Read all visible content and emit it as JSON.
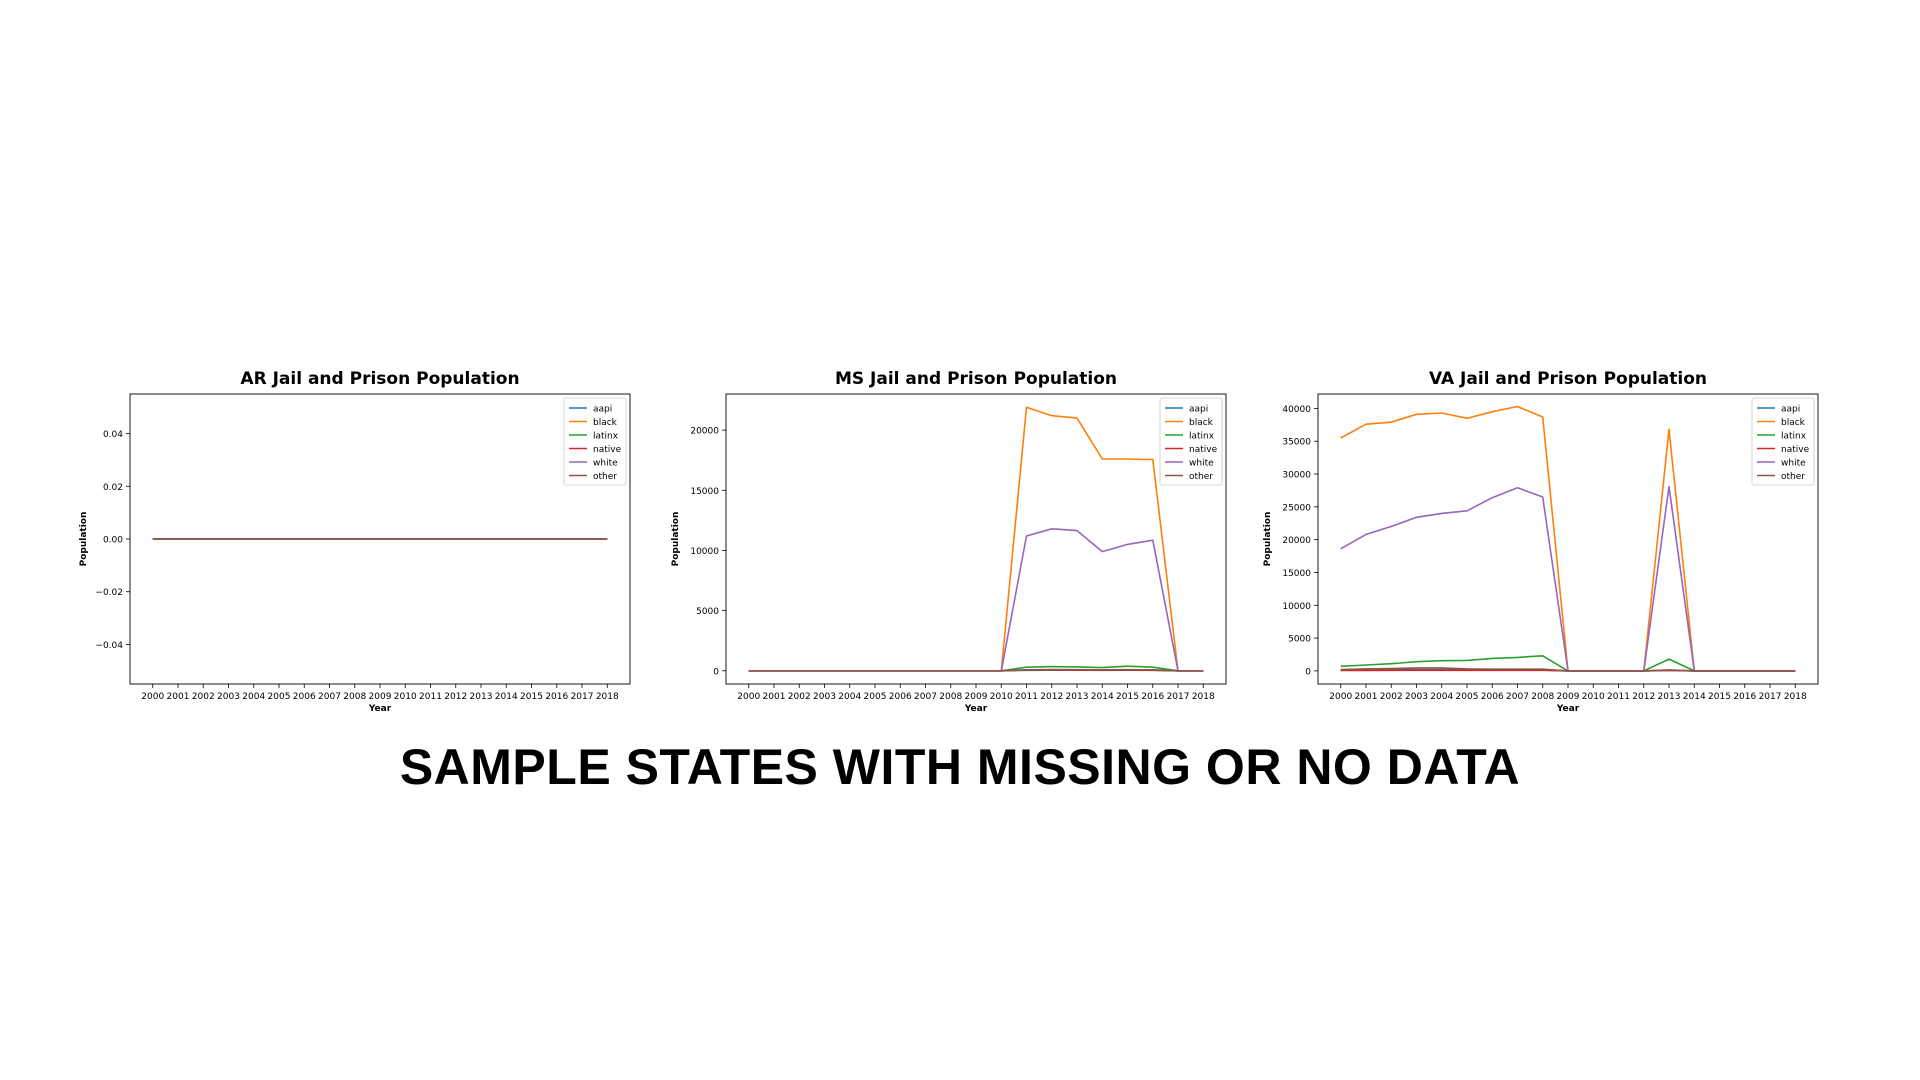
{
  "headline": "SAMPLE STATES WITH MISSING OR NO DATA",
  "series_colors": {
    "aapi": "#1f77b4",
    "black": "#ff7f0e",
    "latinx": "#2ca02c",
    "native": "#d62728",
    "white": "#9467bd",
    "other": "#8c564b"
  },
  "chart_data": [
    {
      "type": "line",
      "title": "AR Jail and Prison Population",
      "xlabel": "Year",
      "ylabel": "Population",
      "x": [
        2000,
        2001,
        2002,
        2003,
        2004,
        2005,
        2006,
        2007,
        2008,
        2009,
        2010,
        2011,
        2012,
        2013,
        2014,
        2015,
        2016,
        2017,
        2018
      ],
      "ylim": [
        -0.055,
        0.055
      ],
      "yticks": [
        -0.04,
        -0.02,
        0.0,
        0.02,
        0.04
      ],
      "ytick_labels": [
        "−0.04",
        "−0.02",
        "0.00",
        "0.02",
        "0.04"
      ],
      "legend_position": "upper right",
      "grid": false,
      "series": [
        {
          "name": "aapi",
          "values": [
            0,
            0,
            0,
            0,
            0,
            0,
            0,
            0,
            0,
            0,
            0,
            0,
            0,
            0,
            0,
            0,
            0,
            0,
            0
          ]
        },
        {
          "name": "black",
          "values": [
            0,
            0,
            0,
            0,
            0,
            0,
            0,
            0,
            0,
            0,
            0,
            0,
            0,
            0,
            0,
            0,
            0,
            0,
            0
          ]
        },
        {
          "name": "latinx",
          "values": [
            0,
            0,
            0,
            0,
            0,
            0,
            0,
            0,
            0,
            0,
            0,
            0,
            0,
            0,
            0,
            0,
            0,
            0,
            0
          ]
        },
        {
          "name": "native",
          "values": [
            0,
            0,
            0,
            0,
            0,
            0,
            0,
            0,
            0,
            0,
            0,
            0,
            0,
            0,
            0,
            0,
            0,
            0,
            0
          ]
        },
        {
          "name": "white",
          "values": [
            0,
            0,
            0,
            0,
            0,
            0,
            0,
            0,
            0,
            0,
            0,
            0,
            0,
            0,
            0,
            0,
            0,
            0,
            0
          ]
        },
        {
          "name": "other",
          "values": [
            0,
            0,
            0,
            0,
            0,
            0,
            0,
            0,
            0,
            0,
            0,
            0,
            0,
            0,
            0,
            0,
            0,
            0,
            0
          ]
        }
      ]
    },
    {
      "type": "line",
      "title": "MS Jail and Prison Population",
      "xlabel": "Year",
      "ylabel": "Population",
      "x": [
        2000,
        2001,
        2002,
        2003,
        2004,
        2005,
        2006,
        2007,
        2008,
        2009,
        2010,
        2011,
        2012,
        2013,
        2014,
        2015,
        2016,
        2017,
        2018
      ],
      "ylim": [
        -1100,
        23000
      ],
      "yticks": [
        0,
        5000,
        10000,
        15000,
        20000
      ],
      "ytick_labels": [
        "0",
        "5000",
        "10000",
        "15000",
        "20000"
      ],
      "legend_position": "upper right",
      "grid": false,
      "series": [
        {
          "name": "aapi",
          "values": [
            0,
            0,
            0,
            0,
            0,
            0,
            0,
            0,
            0,
            0,
            0,
            40,
            50,
            45,
            40,
            45,
            40,
            0,
            0
          ]
        },
        {
          "name": "black",
          "values": [
            0,
            0,
            0,
            0,
            0,
            0,
            0,
            0,
            0,
            0,
            0,
            21900,
            21200,
            21000,
            17600,
            17600,
            17550,
            0,
            0
          ]
        },
        {
          "name": "latinx",
          "values": [
            0,
            0,
            0,
            0,
            0,
            0,
            0,
            0,
            0,
            0,
            0,
            300,
            350,
            320,
            260,
            380,
            300,
            0,
            0
          ]
        },
        {
          "name": "native",
          "values": [
            0,
            0,
            0,
            0,
            0,
            0,
            0,
            0,
            0,
            0,
            0,
            60,
            60,
            50,
            50,
            50,
            50,
            0,
            0
          ]
        },
        {
          "name": "white",
          "values": [
            0,
            0,
            0,
            0,
            0,
            0,
            0,
            0,
            0,
            0,
            0,
            11200,
            11800,
            11650,
            9900,
            10500,
            10850,
            0,
            0
          ]
        },
        {
          "name": "other",
          "values": [
            0,
            0,
            0,
            0,
            0,
            0,
            0,
            0,
            0,
            0,
            0,
            80,
            100,
            90,
            80,
            90,
            80,
            0,
            0
          ]
        }
      ]
    },
    {
      "type": "line",
      "title": "VA Jail and Prison Population",
      "xlabel": "Year",
      "ylabel": "Population",
      "x": [
        2000,
        2001,
        2002,
        2003,
        2004,
        2005,
        2006,
        2007,
        2008,
        2009,
        2010,
        2011,
        2012,
        2013,
        2014,
        2015,
        2016,
        2017,
        2018
      ],
      "ylim": [
        -2000,
        42200
      ],
      "yticks": [
        0,
        5000,
        10000,
        15000,
        20000,
        25000,
        30000,
        35000,
        40000
      ],
      "ytick_labels": [
        "0",
        "5000",
        "10000",
        "15000",
        "20000",
        "25000",
        "30000",
        "35000",
        "40000"
      ],
      "legend_position": "upper right",
      "grid": false,
      "series": [
        {
          "name": "aapi",
          "values": [
            100,
            150,
            150,
            200,
            200,
            150,
            150,
            150,
            150,
            0,
            0,
            0,
            0,
            100,
            0,
            0,
            0,
            0,
            0
          ]
        },
        {
          "name": "black",
          "values": [
            35500,
            37600,
            37900,
            39100,
            39300,
            38500,
            39500,
            40300,
            38700,
            0,
            0,
            0,
            0,
            36800,
            0,
            0,
            0,
            0,
            0
          ]
        },
        {
          "name": "latinx",
          "values": [
            700,
            900,
            1100,
            1400,
            1550,
            1600,
            1900,
            2050,
            2300,
            0,
            0,
            0,
            0,
            1800,
            0,
            0,
            0,
            0,
            0
          ]
        },
        {
          "name": "native",
          "values": [
            80,
            80,
            90,
            90,
            90,
            90,
            90,
            90,
            90,
            0,
            0,
            0,
            0,
            60,
            0,
            0,
            0,
            0,
            0
          ]
        },
        {
          "name": "white",
          "values": [
            18600,
            20800,
            22000,
            23400,
            24000,
            24400,
            26400,
            27900,
            26500,
            0,
            0,
            0,
            0,
            28100,
            0,
            0,
            0,
            0,
            0
          ]
        },
        {
          "name": "other",
          "values": [
            200,
            300,
            350,
            450,
            450,
            300,
            250,
            250,
            250,
            0,
            0,
            0,
            0,
            150,
            0,
            0,
            0,
            0,
            0
          ]
        }
      ]
    }
  ]
}
